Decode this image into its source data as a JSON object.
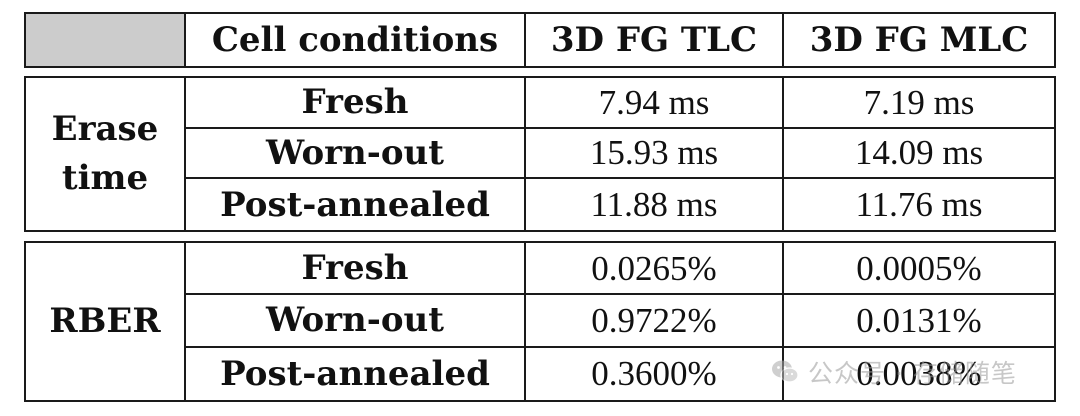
{
  "header": {
    "col1": "Cell conditions",
    "col2": "3D FG TLC",
    "col3": "3D FG MLC"
  },
  "sections": [
    {
      "group_line1": "Erase",
      "group_line2": "time",
      "rows": [
        {
          "condition": "Fresh",
          "tlc": "7.94 ms",
          "mlc": "7.19 ms"
        },
        {
          "condition": "Worn-out",
          "tlc": "15.93 ms",
          "mlc": "14.09 ms"
        },
        {
          "condition": "Post-annealed",
          "tlc": "11.88 ms",
          "mlc": "11.76 ms"
        }
      ]
    },
    {
      "group": "RBER",
      "rows": [
        {
          "condition": "Fresh",
          "tlc": "0.0265%",
          "mlc": "0.0005%"
        },
        {
          "condition": "Worn-out",
          "tlc": "0.9722%",
          "mlc": "0.0131%"
        },
        {
          "condition": "Post-annealed",
          "tlc": "0.3600%",
          "mlc": "0.0038%"
        }
      ]
    }
  ],
  "watermark": {
    "text": "公众号 · 存储随笔",
    "icon": "wechat-icon"
  },
  "colors": {
    "corner_fill": "#cccccc",
    "border": "#1a1a1a",
    "watermark": "#9a9a9a"
  }
}
